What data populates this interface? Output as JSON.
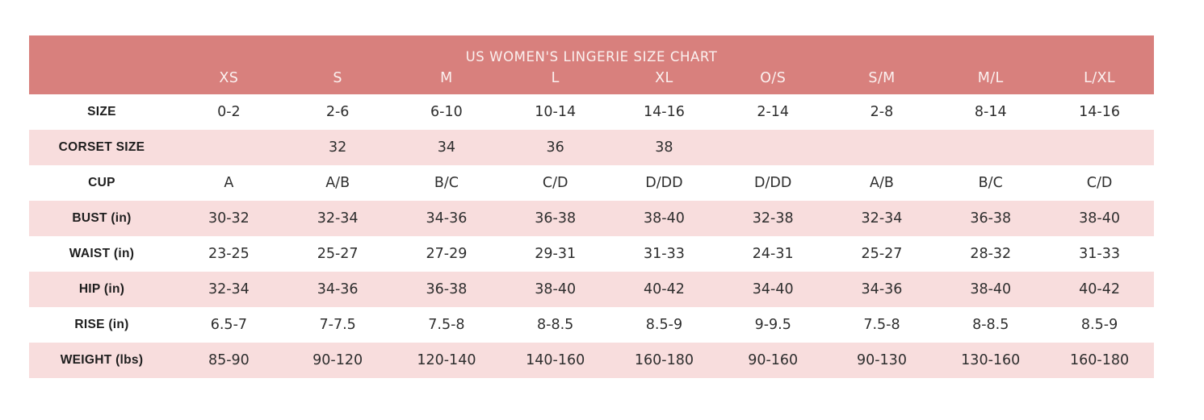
{
  "chart_data": {
    "type": "table",
    "title": "US WOMEN'S LINGERIE SIZE CHART",
    "columns": [
      "XS",
      "S",
      "M",
      "L",
      "XL",
      "O/S",
      "S/M",
      "M/L",
      "L/XL"
    ],
    "rows": [
      {
        "label": "SIZE",
        "values": [
          "0-2",
          "2-6",
          "6-10",
          "10-14",
          "14-16",
          "2-14",
          "2-8",
          "8-14",
          "14-16"
        ]
      },
      {
        "label": "CORSET SIZE",
        "values": [
          "",
          "32",
          "34",
          "36",
          "38",
          "",
          "",
          "",
          ""
        ]
      },
      {
        "label": "CUP",
        "values": [
          "A",
          "A/B",
          "B/C",
          "C/D",
          "D/DD",
          "D/DD",
          "A/B",
          "B/C",
          "C/D"
        ]
      },
      {
        "label": "BUST (in)",
        "values": [
          "30-32",
          "32-34",
          "34-36",
          "36-38",
          "38-40",
          "32-38",
          "32-34",
          "36-38",
          "38-40"
        ]
      },
      {
        "label": "WAIST (in)",
        "values": [
          "23-25",
          "25-27",
          "27-29",
          "29-31",
          "31-33",
          "24-31",
          "25-27",
          "28-32",
          "31-33"
        ]
      },
      {
        "label": "HIP (in)",
        "values": [
          "32-34",
          "34-36",
          "36-38",
          "38-40",
          "40-42",
          "34-40",
          "34-36",
          "38-40",
          "40-42"
        ]
      },
      {
        "label": "RISE (in)",
        "values": [
          "6.5-7",
          "7-7.5",
          "7.5-8",
          "8-8.5",
          "8.5-9",
          "9-9.5",
          "7.5-8",
          "8-8.5",
          "8.5-9"
        ]
      },
      {
        "label": "WEIGHT (lbs)",
        "values": [
          "85-90",
          "90-120",
          "120-140",
          "140-160",
          "160-180",
          "90-160",
          "90-130",
          "130-160",
          "160-180"
        ]
      }
    ],
    "layout": {
      "stripe_pattern": "odd-rows-pink",
      "header_rows": 2
    }
  },
  "colors": {
    "header_bg": "#d8807d",
    "header_text": "#fbf1f0",
    "stripe_bg": "#f8dddd",
    "body_text": "#2e2e2e",
    "page_bg": "#ffffff"
  }
}
